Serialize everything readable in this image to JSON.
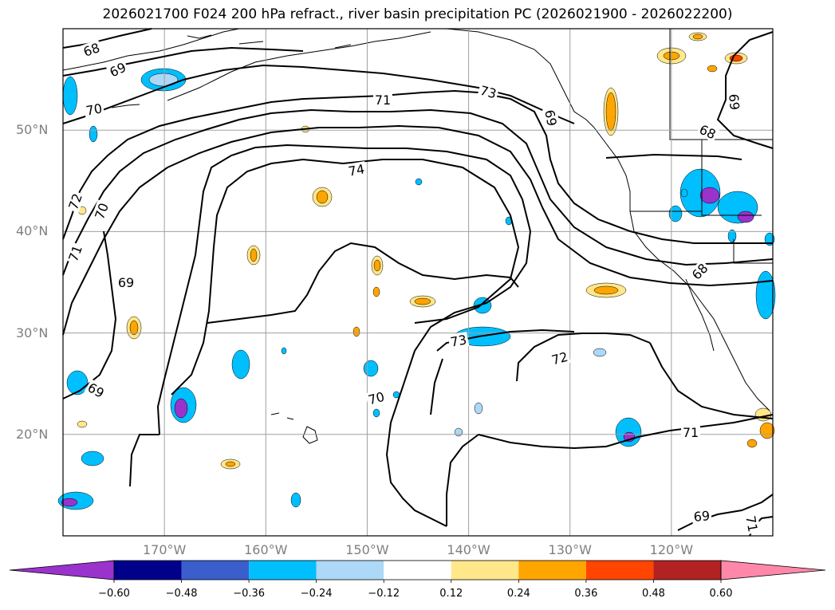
{
  "title": "2026021700 F024 200 hPa refract., river basin precipitation PC (2026021900 - 2026022200)",
  "map": {
    "lat_labels": [
      {
        "label": "50°N",
        "lat": 50
      },
      {
        "label": "40°N",
        "lat": 40
      },
      {
        "label": "30°N",
        "lat": 30
      },
      {
        "label": "20°N",
        "lat": 20
      }
    ],
    "lon_labels": [
      {
        "label": "170°W",
        "lon": -170
      },
      {
        "label": "160°W",
        "lon": -160
      },
      {
        "label": "150°W",
        "lon": -150
      },
      {
        "label": "140°W",
        "lon": -140
      },
      {
        "label": "130°W",
        "lon": -130
      },
      {
        "label": "120°W",
        "lon": -120
      }
    ],
    "extent": {
      "lon": [
        -180,
        -110
      ],
      "lat": [
        10,
        60
      ]
    },
    "contour_labels": [
      "68",
      "69",
      "70",
      "71",
      "74",
      "72",
      "70",
      "71",
      "69",
      "69",
      "70",
      "73",
      "73",
      "72",
      "71",
      "69",
      "68",
      "69",
      "68",
      "71",
      "69"
    ],
    "grid_color": "#a0a0a0"
  },
  "colorbar": {
    "ticks": [
      "−0.60",
      "−0.48",
      "−0.36",
      "−0.24",
      "−0.12",
      "0.12",
      "0.24",
      "0.36",
      "0.48",
      "0.60"
    ],
    "colors": [
      "#9933cc",
      "#00008b",
      "#3a5fcd",
      "#00bfff",
      "#add8f7",
      "#ffffff",
      "#ffe78a",
      "#ffa500",
      "#ff4500",
      "#b22222",
      "#ff88aa"
    ]
  }
}
